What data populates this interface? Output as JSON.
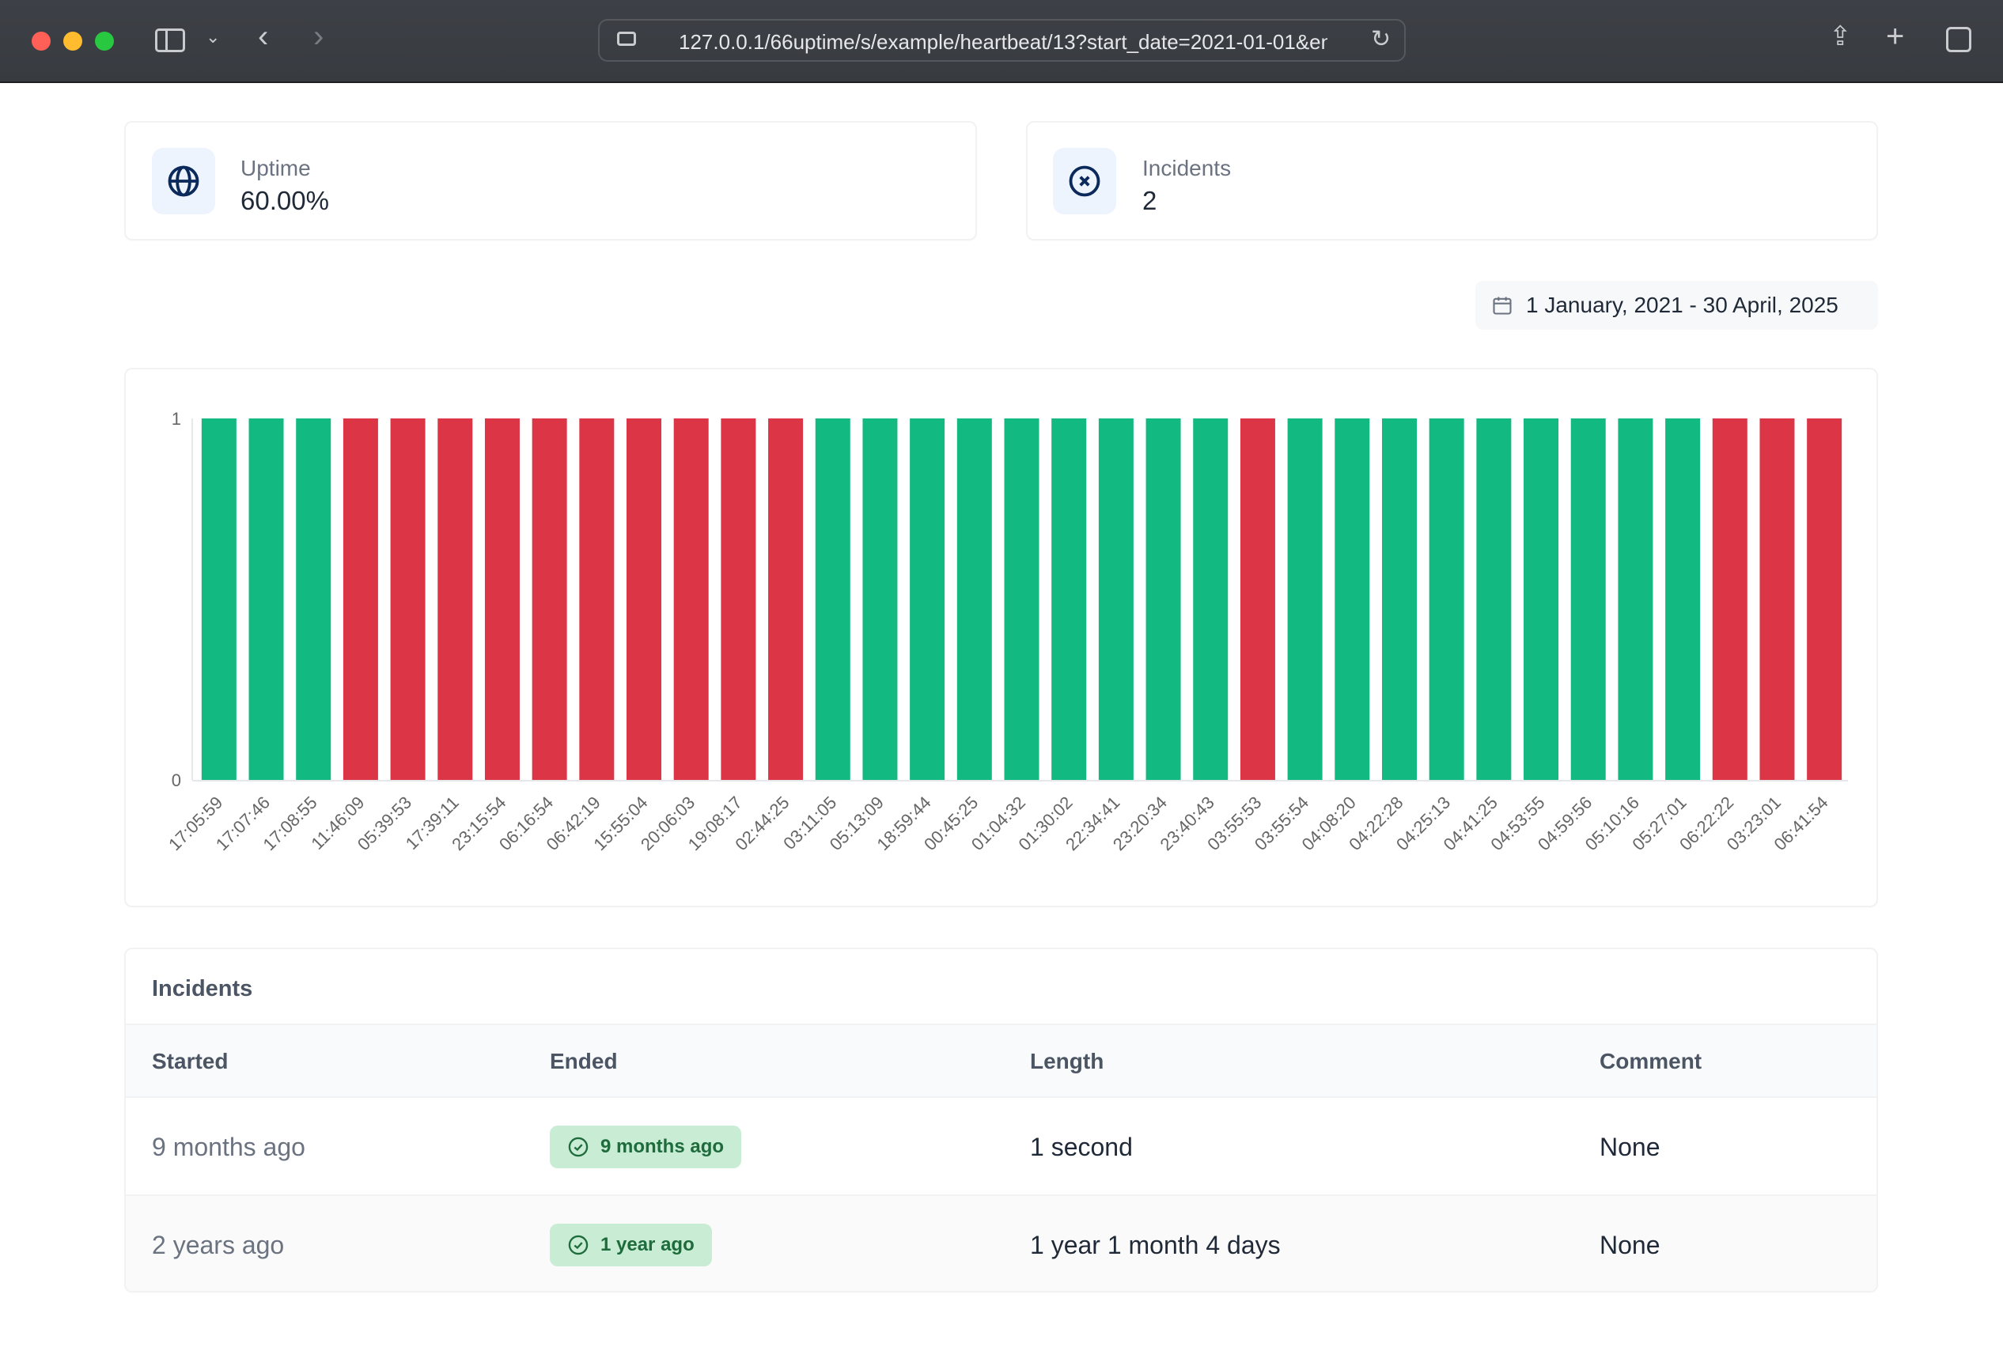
{
  "browser": {
    "url": "127.0.0.1/66uptime/s/example/heartbeat/13?start_date=2021-01-01&en",
    "icons": [
      "sidebar-icon",
      "chevron-down-icon",
      "back-icon",
      "forward-icon",
      "site-settings-icon",
      "reload-icon",
      "share-icon",
      "new-tab-icon",
      "tabs-overview-icon"
    ]
  },
  "stats": {
    "uptime": {
      "label": "Uptime",
      "value": "60.00%",
      "icon": "globe-icon"
    },
    "incidents": {
      "label": "Incidents",
      "value": "2",
      "icon": "x-circle-icon"
    }
  },
  "date_range": {
    "label": "1 January, 2021 - 30 April, 2025",
    "icon": "calendar-icon"
  },
  "colors": {
    "up": "#12b981",
    "down": "#dc3545"
  },
  "chart_data": {
    "type": "bar",
    "ylim": [
      0,
      1
    ],
    "yticks": [
      "0",
      "1"
    ],
    "grid": false,
    "categories": [
      "17:05:59",
      "17:07:46",
      "17:08:55",
      "11:46:09",
      "05:39:53",
      "17:39:11",
      "23:15:54",
      "06:16:54",
      "06:42:19",
      "15:55:04",
      "20:06:03",
      "19:08:17",
      "02:44:25",
      "03:11:05",
      "05:13:09",
      "18:59:44",
      "00:45:25",
      "01:04:32",
      "01:30:02",
      "22:34:41",
      "23:20:34",
      "23:40:43",
      "03:55:53",
      "03:55:54",
      "04:08:20",
      "04:22:28",
      "04:25:13",
      "04:41:25",
      "04:53:55",
      "04:59:56",
      "05:10:16",
      "05:27:01",
      "06:22:22",
      "03:23:01",
      "06:41:54"
    ],
    "values": [
      1,
      1,
      1,
      1,
      1,
      1,
      1,
      1,
      1,
      1,
      1,
      1,
      1,
      1,
      1,
      1,
      1,
      1,
      1,
      1,
      1,
      1,
      1,
      1,
      1,
      1,
      1,
      1,
      1,
      1,
      1,
      1,
      1,
      1,
      1
    ],
    "status": [
      "up",
      "up",
      "up",
      "down",
      "down",
      "down",
      "down",
      "down",
      "down",
      "down",
      "down",
      "down",
      "down",
      "up",
      "up",
      "up",
      "up",
      "up",
      "up",
      "up",
      "up",
      "up",
      "down",
      "up",
      "up",
      "up",
      "up",
      "up",
      "up",
      "up",
      "up",
      "up",
      "down",
      "down",
      "down"
    ]
  },
  "incidents_table": {
    "title": "Incidents",
    "headers": [
      "Started",
      "Ended",
      "Length",
      "Comment"
    ],
    "rows": [
      {
        "started": "9 months ago",
        "ended": "9 months ago",
        "length": "1 second",
        "comment": "None"
      },
      {
        "started": "2 years ago",
        "ended": "1 year ago",
        "length": "1 year 1 month 4 days",
        "comment": "None"
      }
    ]
  }
}
